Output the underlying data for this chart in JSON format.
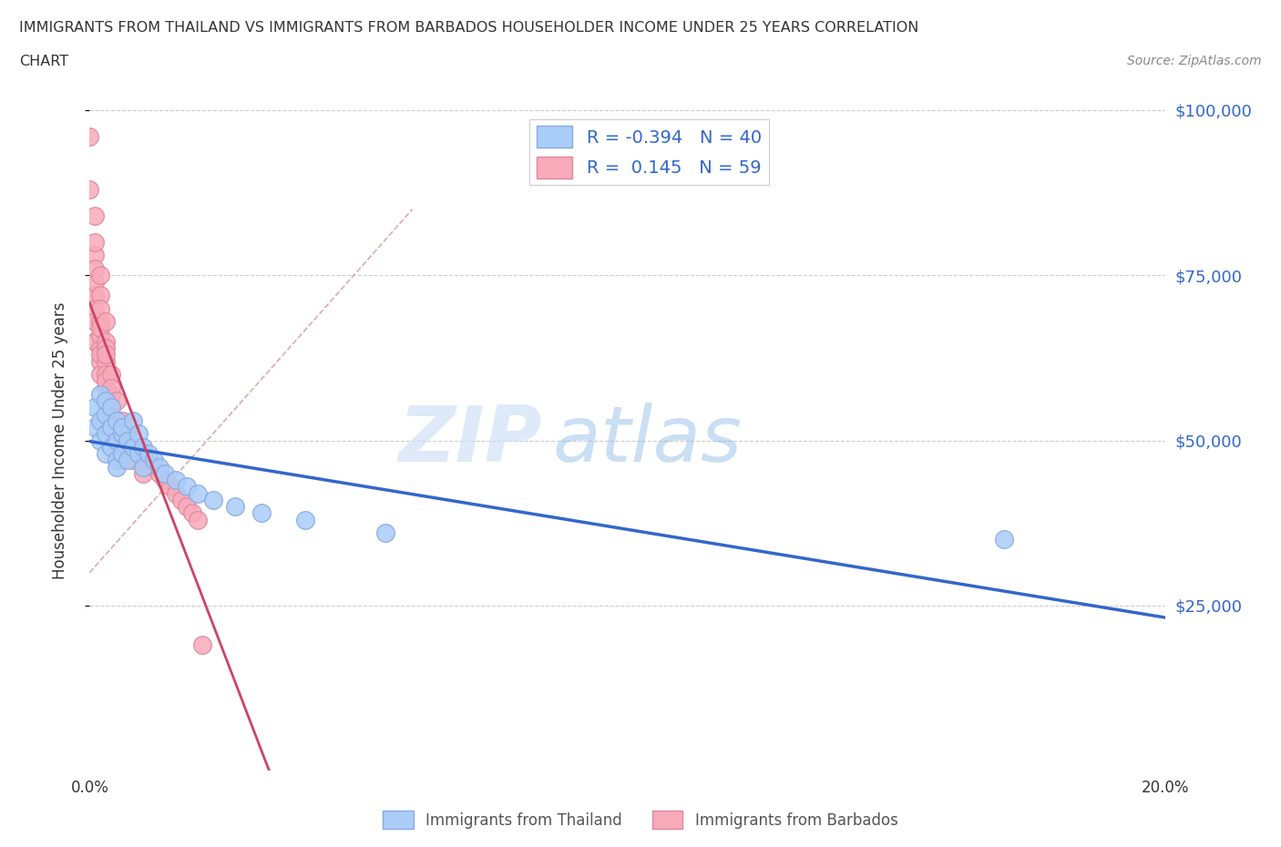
{
  "title_line1": "IMMIGRANTS FROM THAILAND VS IMMIGRANTS FROM BARBADOS HOUSEHOLDER INCOME UNDER 25 YEARS CORRELATION",
  "title_line2": "CHART",
  "source": "Source: ZipAtlas.com",
  "ylabel": "Householder Income Under 25 years",
  "xmin": 0.0,
  "xmax": 0.2,
  "ymin": 0,
  "ymax": 100000,
  "yticks": [
    25000,
    50000,
    75000,
    100000
  ],
  "ytick_labels": [
    "$25,000",
    "$50,000",
    "$75,000",
    "$100,000"
  ],
  "xticks": [
    0.0,
    0.05,
    0.1,
    0.15,
    0.2
  ],
  "xtick_labels": [
    "0.0%",
    "",
    "",
    "",
    "20.0%"
  ],
  "thailand_color": "#aaccf8",
  "thailand_edge": "#88aadd",
  "barbados_color": "#f8aabb",
  "barbados_edge": "#dd8899",
  "thailand_line_color": "#3366cc",
  "barbados_line_color": "#cc4466",
  "legend_text_color": "#3366cc",
  "background_color": "#ffffff",
  "watermark_zip": "ZIP",
  "watermark_atlas": "atlas",
  "R_thailand": -0.394,
  "N_thailand": 40,
  "R_barbados": 0.145,
  "N_barbados": 59,
  "thailand_x": [
    0.001,
    0.001,
    0.002,
    0.002,
    0.002,
    0.003,
    0.003,
    0.003,
    0.003,
    0.004,
    0.004,
    0.004,
    0.005,
    0.005,
    0.005,
    0.005,
    0.006,
    0.006,
    0.006,
    0.007,
    0.007,
    0.008,
    0.008,
    0.009,
    0.009,
    0.01,
    0.01,
    0.011,
    0.012,
    0.013,
    0.014,
    0.016,
    0.018,
    0.02,
    0.023,
    0.027,
    0.032,
    0.04,
    0.055,
    0.17
  ],
  "thailand_y": [
    55000,
    52000,
    53000,
    50000,
    57000,
    54000,
    51000,
    48000,
    56000,
    52000,
    49000,
    55000,
    50000,
    47000,
    53000,
    46000,
    51000,
    48000,
    52000,
    50000,
    47000,
    53000,
    49000,
    48000,
    51000,
    46000,
    49000,
    48000,
    47000,
    46000,
    45000,
    44000,
    43000,
    42000,
    41000,
    40000,
    39000,
    38000,
    36000,
    35000
  ],
  "barbados_x": [
    0.0,
    0.0,
    0.001,
    0.001,
    0.001,
    0.001,
    0.001,
    0.001,
    0.001,
    0.001,
    0.001,
    0.002,
    0.002,
    0.002,
    0.002,
    0.002,
    0.002,
    0.002,
    0.002,
    0.002,
    0.002,
    0.003,
    0.003,
    0.003,
    0.003,
    0.003,
    0.003,
    0.003,
    0.003,
    0.003,
    0.004,
    0.004,
    0.004,
    0.004,
    0.004,
    0.005,
    0.005,
    0.005,
    0.006,
    0.006,
    0.006,
    0.007,
    0.007,
    0.008,
    0.008,
    0.009,
    0.01,
    0.01,
    0.011,
    0.012,
    0.013,
    0.014,
    0.015,
    0.016,
    0.017,
    0.018,
    0.019,
    0.02,
    0.021
  ],
  "barbados_y": [
    96000,
    88000,
    84000,
    78000,
    80000,
    76000,
    72000,
    70000,
    74000,
    68000,
    65000,
    75000,
    72000,
    68000,
    64000,
    70000,
    66000,
    62000,
    60000,
    67000,
    63000,
    68000,
    65000,
    62000,
    58000,
    64000,
    60000,
    56000,
    63000,
    59000,
    60000,
    57000,
    54000,
    58000,
    55000,
    56000,
    52000,
    49000,
    53000,
    50000,
    47000,
    51000,
    48000,
    50000,
    47000,
    49000,
    48000,
    45000,
    47000,
    46000,
    45000,
    44000,
    43000,
    42000,
    41000,
    40000,
    39000,
    38000,
    19000
  ],
  "dashed_line_x": [
    0.0,
    0.06
  ],
  "dashed_line_y": [
    30000,
    85000
  ]
}
